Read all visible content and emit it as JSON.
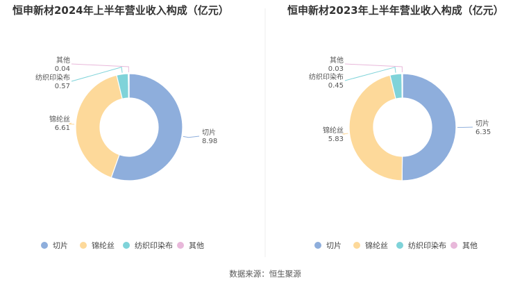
{
  "source": "数据来源：恒生聚源",
  "chart_data": [
    {
      "type": "pie",
      "title": "恒申新材2024年上半年营业收入构成（亿元）",
      "categories": [
        "切片",
        "锦纶丝",
        "纺织印染布",
        "其他"
      ],
      "values": [
        8.98,
        6.61,
        0.57,
        0.04
      ],
      "colors": [
        "#8eaedc",
        "#fdd99a",
        "#7fd3d9",
        "#e8b8da"
      ],
      "legend_position": "bottom"
    },
    {
      "type": "pie",
      "title": "恒申新材2023年上半年营业收入构成（亿元）",
      "categories": [
        "切片",
        "锦纶丝",
        "纺织印染布",
        "其他"
      ],
      "values": [
        6.35,
        5.83,
        0.45,
        0.03
      ],
      "colors": [
        "#8eaedc",
        "#fdd99a",
        "#7fd3d9",
        "#e8b8da"
      ],
      "legend_position": "bottom"
    }
  ]
}
